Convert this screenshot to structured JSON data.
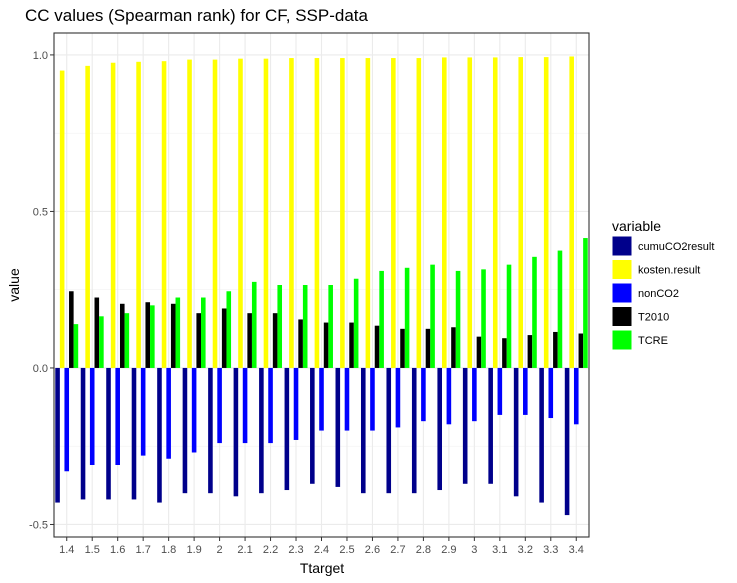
{
  "chart_data": {
    "type": "bar",
    "title": "CC values (Spearman rank) for CF, SSP-data",
    "xlabel": "Ttarget",
    "ylabel": "value",
    "ylim": [
      -0.54,
      1.07
    ],
    "yticks": [
      -0.5,
      0.0,
      0.5,
      1.0
    ],
    "ytick_labels": [
      "-0.5",
      "0.0",
      "0.5",
      "1.0"
    ],
    "grid": true,
    "legend": {
      "title": "variable",
      "position": "right"
    },
    "categories": [
      "1.4",
      "1.5",
      "1.6",
      "1.7",
      "1.8",
      "1.9",
      "2",
      "2.1",
      "2.2",
      "2.3",
      "2.4",
      "2.5",
      "2.6",
      "2.7",
      "2.8",
      "2.9",
      "3",
      "3.1",
      "3.2",
      "3.3",
      "3.4"
    ],
    "series": [
      {
        "name": "cumuCO2result",
        "color": "#00008b",
        "values": [
          -0.43,
          -0.42,
          -0.42,
          -0.42,
          -0.43,
          -0.4,
          -0.4,
          -0.41,
          -0.4,
          -0.39,
          -0.37,
          -0.38,
          -0.4,
          -0.4,
          -0.4,
          -0.39,
          -0.37,
          -0.37,
          -0.41,
          -0.43,
          -0.47
        ]
      },
      {
        "name": "kosten.result",
        "color": "#ffff00",
        "values": [
          0.95,
          0.965,
          0.975,
          0.978,
          0.98,
          0.985,
          0.985,
          0.988,
          0.988,
          0.99,
          0.99,
          0.99,
          0.99,
          0.99,
          0.99,
          0.992,
          0.992,
          0.992,
          0.993,
          0.993,
          0.995
        ]
      },
      {
        "name": "nonCO2",
        "color": "#0000ff",
        "values": [
          -0.33,
          -0.31,
          -0.31,
          -0.28,
          -0.29,
          -0.27,
          -0.24,
          -0.24,
          -0.24,
          -0.23,
          -0.2,
          -0.2,
          -0.2,
          -0.19,
          -0.17,
          -0.18,
          -0.17,
          -0.15,
          -0.15,
          -0.16,
          -0.18
        ]
      },
      {
        "name": "T2010",
        "color": "#000000",
        "values": [
          0.245,
          0.225,
          0.205,
          0.21,
          0.205,
          0.175,
          0.19,
          0.175,
          0.175,
          0.155,
          0.145,
          0.145,
          0.135,
          0.125,
          0.125,
          0.13,
          0.1,
          0.095,
          0.105,
          0.115,
          0.11
        ]
      },
      {
        "name": "TCRE",
        "color": "#00ff00",
        "values": [
          0.14,
          0.165,
          0.175,
          0.2,
          0.225,
          0.225,
          0.245,
          0.275,
          0.265,
          0.265,
          0.265,
          0.285,
          0.31,
          0.32,
          0.33,
          0.31,
          0.315,
          0.33,
          0.355,
          0.375,
          0.415
        ]
      }
    ]
  }
}
